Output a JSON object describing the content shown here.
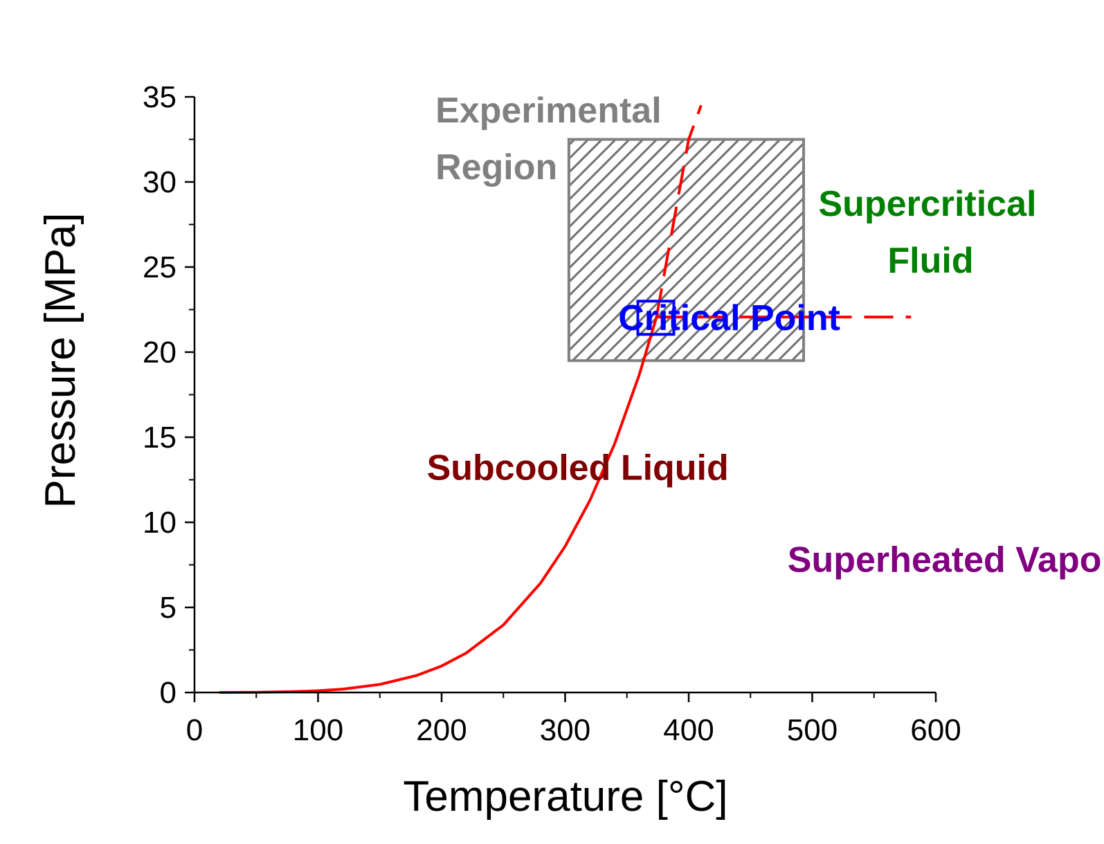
{
  "chart_data": {
    "type": "line",
    "title": "",
    "xlabel": "Temperature [°C]",
    "ylabel": "Pressure [MPa]",
    "xlim": [
      0,
      600
    ],
    "ylim": [
      0,
      35
    ],
    "xticks": [
      "0",
      "100",
      "200",
      "300",
      "400",
      "500",
      "600"
    ],
    "yticks": [
      "0",
      "5",
      "10",
      "15",
      "20",
      "25",
      "30",
      "35"
    ],
    "grid": false,
    "series": [
      {
        "style": "solid",
        "color": "#ff0000",
        "x": [
          20,
          50,
          80,
          100,
          120,
          150,
          180,
          200,
          220,
          250,
          280,
          300,
          320,
          340,
          360,
          373.95
        ],
        "y": [
          0.002,
          0.012,
          0.047,
          0.101,
          0.199,
          0.476,
          1.003,
          1.555,
          2.32,
          3.97,
          6.42,
          8.59,
          11.28,
          14.6,
          18.67,
          22.06
        ]
      },
      {
        "style": "dashed",
        "color": "#ff0000",
        "x": [
          373.95,
          390,
          400,
          410
        ],
        "y": [
          22.06,
          28.5,
          32.5,
          34.5
        ]
      },
      {
        "style": "dashed",
        "color": "#ff0000",
        "x": [
          373.95,
          580
        ],
        "y": [
          22.06,
          22.06
        ]
      }
    ],
    "regions": [
      {
        "label": "Experimental Region",
        "x_range": [
          303,
          493
        ],
        "y_range": [
          19.5,
          32.5
        ],
        "fill": "hatched",
        "color": "#808080"
      }
    ],
    "critical_point": {
      "x": 373.95,
      "y": 22.06,
      "color": "#0000ff"
    },
    "annotations": [
      {
        "lines": [
          "Experimental",
          "Region"
        ],
        "color": "#808080",
        "x": 195,
        "y": 33.5
      },
      {
        "lines": [
          "Supercritical",
          "Fluid"
        ],
        "color": "#008000",
        "x": 505,
        "y": 28
      },
      {
        "lines": [
          "Critical Point"
        ],
        "color": "#0000ff",
        "x": 343,
        "y": 21.3
      },
      {
        "lines": [
          "Subcooled Liquid"
        ],
        "color": "#800000",
        "x": 188,
        "y": 12.5
      },
      {
        "lines": [
          "Superheated Vapor"
        ],
        "color": "#800080",
        "x": 480,
        "y": 7.1
      }
    ]
  }
}
